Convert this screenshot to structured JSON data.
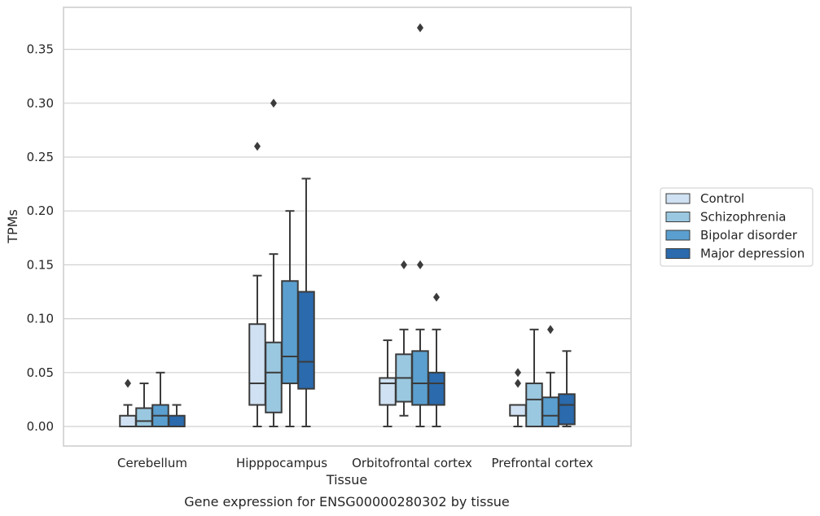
{
  "caption": "Gene expression for ENSG00000280302 by tissue",
  "chart_data": {
    "type": "boxplot",
    "title": "",
    "xlabel": "Tissue",
    "ylabel": "TPMs",
    "ylim": [
      -0.018,
      0.388
    ],
    "yticks": [
      "0.00",
      "0.05",
      "0.10",
      "0.15",
      "0.20",
      "0.25",
      "0.30",
      "0.35"
    ],
    "grid": "horizontal",
    "legend_position": "right",
    "categories": [
      "Cerebellum",
      "Hipppocampus",
      "Orbitofrontal cortex",
      "Prefrontal cortex"
    ],
    "series": [
      {
        "name": "Control",
        "color": "#cfe1f2",
        "boxes": [
          {
            "whisker_low": 0,
            "q1": 0,
            "median": 0,
            "q3": 0.01,
            "whisker_high": 0.02,
            "outliers": [
              0.04
            ]
          },
          {
            "whisker_low": 0,
            "q1": 0.02,
            "median": 0.04,
            "q3": 0.095,
            "whisker_high": 0.14,
            "outliers": [
              0.26
            ]
          },
          {
            "whisker_low": 0,
            "q1": 0.02,
            "median": 0.04,
            "q3": 0.045,
            "whisker_high": 0.08,
            "outliers": []
          },
          {
            "whisker_low": 0,
            "q1": 0.01,
            "median": 0.02,
            "q3": 0.02,
            "whisker_high": 0.02,
            "outliers": [
              0.04,
              0.05
            ]
          }
        ]
      },
      {
        "name": "Schizophrenia",
        "color": "#9ac8e0",
        "boxes": [
          {
            "whisker_low": 0,
            "q1": 0,
            "median": 0.005,
            "q3": 0.017,
            "whisker_high": 0.04,
            "outliers": []
          },
          {
            "whisker_low": 0,
            "q1": 0.013,
            "median": 0.05,
            "q3": 0.078,
            "whisker_high": 0.16,
            "outliers": [
              0.3
            ]
          },
          {
            "whisker_low": 0.01,
            "q1": 0.023,
            "median": 0.045,
            "q3": 0.067,
            "whisker_high": 0.09,
            "outliers": [
              0.15
            ]
          },
          {
            "whisker_low": 0,
            "q1": 0,
            "median": 0.025,
            "q3": 0.04,
            "whisker_high": 0.09,
            "outliers": []
          }
        ]
      },
      {
        "name": "Bipolar disorder",
        "color": "#5a9fcf",
        "boxes": [
          {
            "whisker_low": 0,
            "q1": 0,
            "median": 0.01,
            "q3": 0.02,
            "whisker_high": 0.05,
            "outliers": []
          },
          {
            "whisker_low": 0,
            "q1": 0.04,
            "median": 0.065,
            "q3": 0.135,
            "whisker_high": 0.2,
            "outliers": []
          },
          {
            "whisker_low": 0,
            "q1": 0.02,
            "median": 0.04,
            "q3": 0.07,
            "whisker_high": 0.09,
            "outliers": [
              0.15,
              0.37
            ]
          },
          {
            "whisker_low": 0,
            "q1": 0,
            "median": 0.01,
            "q3": 0.027,
            "whisker_high": 0.05,
            "outliers": [
              0.09
            ]
          }
        ]
      },
      {
        "name": "Major depression",
        "color": "#2a6aad",
        "boxes": [
          {
            "whisker_low": 0,
            "q1": 0,
            "median": 0,
            "q3": 0.01,
            "whisker_high": 0.02,
            "outliers": []
          },
          {
            "whisker_low": 0,
            "q1": 0.035,
            "median": 0.06,
            "q3": 0.125,
            "whisker_high": 0.23,
            "outliers": []
          },
          {
            "whisker_low": 0,
            "q1": 0.02,
            "median": 0.04,
            "q3": 0.05,
            "whisker_high": 0.09,
            "outliers": [
              0.12
            ]
          },
          {
            "whisker_low": 0,
            "q1": 0.002,
            "median": 0.02,
            "q3": 0.03,
            "whisker_high": 0.07,
            "outliers": []
          }
        ]
      }
    ]
  }
}
